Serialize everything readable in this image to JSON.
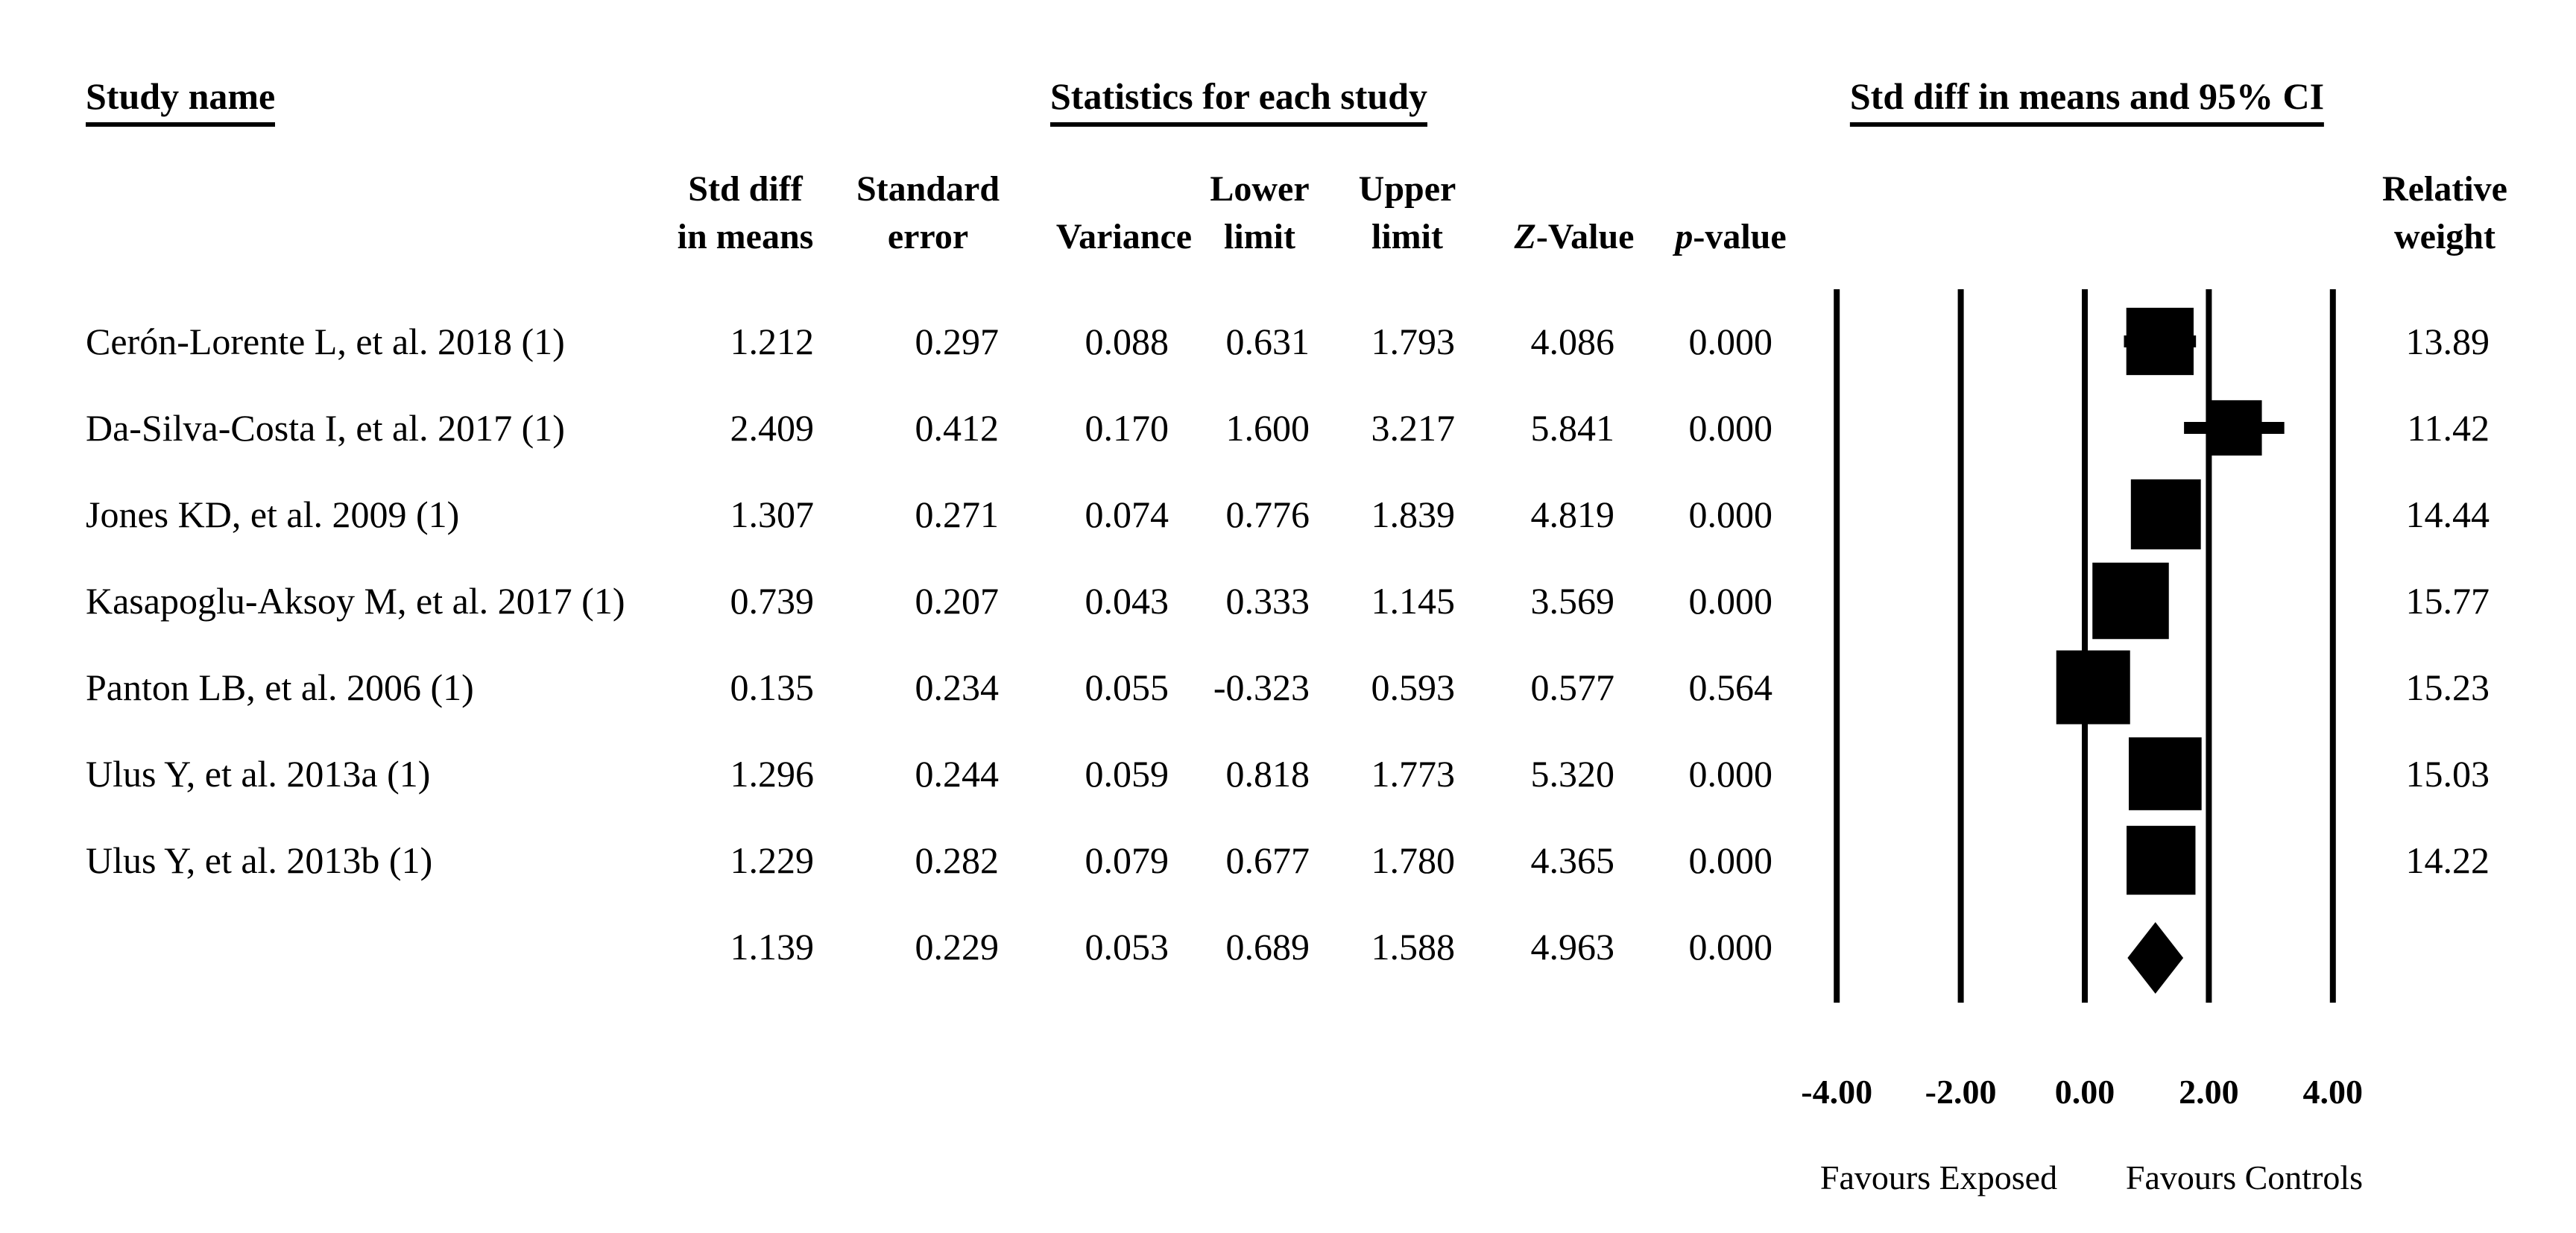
{
  "figure": {
    "headers": {
      "study_name": "Study name",
      "statistics": "Statistics for each study",
      "plot": "Std diff in means and 95% CI"
    },
    "columns": {
      "std_diff": [
        "Std diff",
        "in means"
      ],
      "standard_error": [
        "Standard",
        "error"
      ],
      "variance": "Variance",
      "lower": [
        "Lower",
        "limit"
      ],
      "upper": [
        "Upper",
        "limit"
      ],
      "z_value": [
        "Z",
        "-Value"
      ],
      "p_value": [
        "p",
        "-value"
      ],
      "relative_weight": [
        "Relative",
        "weight"
      ]
    }
  },
  "chart_data": {
    "type": "forest",
    "title": "Std diff in means and 95% CI",
    "effect_measure": "Std diff in means",
    "x_axis": {
      "range": [
        -4,
        4
      ],
      "ticks": [
        -4,
        -2,
        0,
        2,
        4
      ],
      "tick_labels": [
        "-4.00",
        "-2.00",
        "0.00",
        "2.00",
        "4.00"
      ]
    },
    "footer_labels": {
      "left": "Favours Exposed",
      "right": "Favours Controls"
    },
    "studies": [
      {
        "name": "Cerón-Lorente L, et al. 2018 (1)",
        "std_diff_in_means": 1.212,
        "standard_error": 0.297,
        "variance": 0.088,
        "lower_limit": 0.631,
        "upper_limit": 1.793,
        "z_value": 4.086,
        "p_value": 0.0,
        "relative_weight": 13.89
      },
      {
        "name": "Da-Silva-Costa I, et al. 2017 (1)",
        "std_diff_in_means": 2.409,
        "standard_error": 0.412,
        "variance": 0.17,
        "lower_limit": 1.6,
        "upper_limit": 3.217,
        "z_value": 5.841,
        "p_value": 0.0,
        "relative_weight": 11.42
      },
      {
        "name": "Jones KD, et al. 2009 (1)",
        "std_diff_in_means": 1.307,
        "standard_error": 0.271,
        "variance": 0.074,
        "lower_limit": 0.776,
        "upper_limit": 1.839,
        "z_value": 4.819,
        "p_value": 0.0,
        "relative_weight": 14.44
      },
      {
        "name": "Kasapoglu-Aksoy M, et al. 2017 (1)",
        "std_diff_in_means": 0.739,
        "standard_error": 0.207,
        "variance": 0.043,
        "lower_limit": 0.333,
        "upper_limit": 1.145,
        "z_value": 3.569,
        "p_value": 0.0,
        "relative_weight": 15.77
      },
      {
        "name": "Panton LB, et al. 2006 (1)",
        "std_diff_in_means": 0.135,
        "standard_error": 0.234,
        "variance": 0.055,
        "lower_limit": -0.323,
        "upper_limit": 0.593,
        "z_value": 0.577,
        "p_value": 0.564,
        "relative_weight": 15.23
      },
      {
        "name": "Ulus Y, et al. 2013a (1)",
        "std_diff_in_means": 1.296,
        "standard_error": 0.244,
        "variance": 0.059,
        "lower_limit": 0.818,
        "upper_limit": 1.773,
        "z_value": 5.32,
        "p_value": 0.0,
        "relative_weight": 15.03
      },
      {
        "name": "Ulus Y, et al. 2013b (1)",
        "std_diff_in_means": 1.229,
        "standard_error": 0.282,
        "variance": 0.079,
        "lower_limit": 0.677,
        "upper_limit": 1.78,
        "z_value": 4.365,
        "p_value": 0.0,
        "relative_weight": 14.22
      }
    ],
    "summary": {
      "std_diff_in_means": 1.139,
      "standard_error": 0.229,
      "variance": 0.053,
      "lower_limit": 0.689,
      "upper_limit": 1.588,
      "z_value": 4.963,
      "p_value": 0.0
    }
  }
}
